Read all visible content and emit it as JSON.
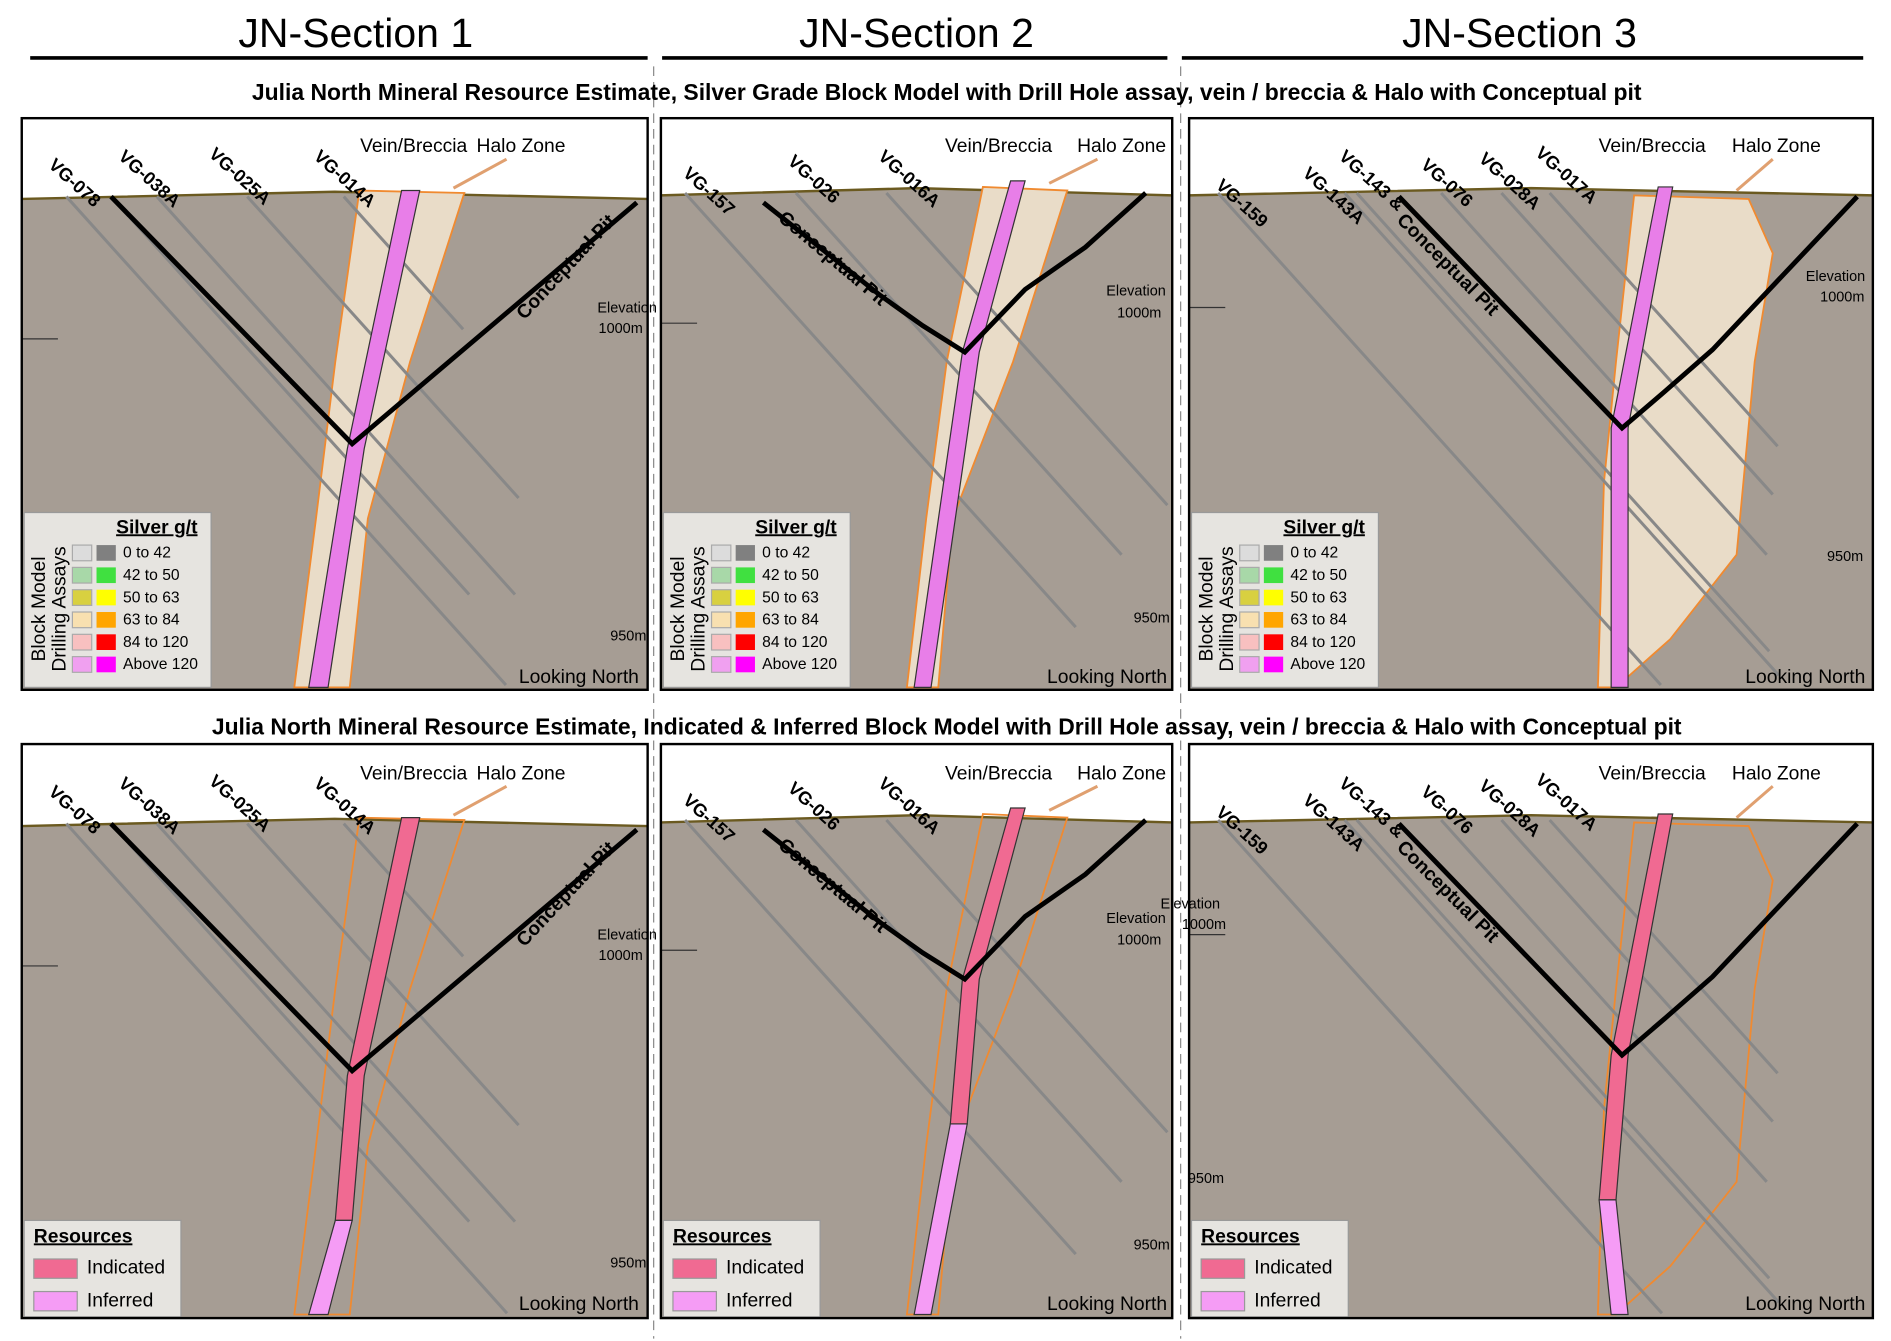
{
  "header": {
    "sections": [
      "JN-Section 1",
      "JN-Section 2",
      "JN-Section 3"
    ]
  },
  "rows": [
    {
      "title": "Julia North Mineral Resource Estimate, Silver Grade Block Model with Drill Hole assay, vein / breccia & Halo with Conceptual pit",
      "panels": [
        {
          "drill_holes": [
            "VG-078",
            "VG-038A",
            "VG-025A",
            "VG-014A"
          ],
          "vein": "Vein/Breccia",
          "halo": "Halo Zone",
          "pit": "Conceptual Pit",
          "elevation": "Elevation",
          "elevation_1000": "1000m",
          "elevation_950": "950m",
          "view": "Looking North",
          "legend": {
            "title": "Silver g/t",
            "groups": [
              "Block Model",
              "Drilling Assays"
            ],
            "items": [
              "0   to 42",
              "42 to 50",
              "50 to 63",
              "63 to 84",
              "84 to 120",
              "Above 120"
            ]
          }
        },
        {
          "drill_holes": [
            "VG-157",
            "VG-026",
            "VG-016A"
          ],
          "vein": "Vein/Breccia",
          "halo": "Halo Zone",
          "pit": "Conceptual Pit",
          "elevation": "Elevation",
          "elevation_1000": "1000m",
          "elevation_950": "950m",
          "view": "Looking North",
          "legend": {
            "title": "Silver g/t",
            "groups": [
              "Block Model",
              "Drilling Assays"
            ],
            "items": [
              "0   to 42",
              "42 to 50",
              "50 to 63",
              "63 to 84",
              "84 to 120",
              "Above 120"
            ]
          }
        },
        {
          "drill_holes": [
            "VG-159",
            "VG-143A",
            "VG-143 &",
            "VG-076",
            "VG-028A",
            "VG-017A"
          ],
          "vein": "Vein/Breccia",
          "halo": "Halo Zone",
          "pit": "Conceptual Pit",
          "elevation": "Elevation",
          "elevation_1000": "1000m",
          "elevation_950": "950m",
          "view": "Looking North",
          "legend": {
            "title": "Silver g/t",
            "groups": [
              "Block Model",
              "Drilling Assays"
            ],
            "items": [
              "0   to 42",
              "42 to 50",
              "50 to 63",
              "63 to 84",
              "84 to 120",
              "Above 120"
            ]
          }
        }
      ]
    },
    {
      "title": "Julia North Mineral Resource Estimate, Indicated & Inferred Block Model with Drill Hole assay, vein / breccia & Halo with Conceptual pit",
      "panels": [
        {
          "drill_holes": [
            "VG-078",
            "VG-038A",
            "VG-025A",
            "VG-014A"
          ],
          "vein": "Vein/Breccia",
          "halo": "Halo Zone",
          "pit": "Conceptual Pit",
          "elevation": "Elevation",
          "elevation_1000": "1000m",
          "elevation_950": "950m",
          "view": "Looking North",
          "legend": {
            "title": "Resources",
            "items": [
              "Indicated",
              "Inferred"
            ]
          }
        },
        {
          "drill_holes": [
            "VG-157",
            "VG-026",
            "VG-016A"
          ],
          "vein": "Vein/Breccia",
          "halo": "Halo Zone",
          "pit": "Conceptual Pit",
          "elevation": "Elevation",
          "elevation_1000": "1000m",
          "elevation_950": "950m",
          "view": "Looking North",
          "legend": {
            "title": "Resources",
            "items": [
              "Indicated",
              "Inferred"
            ]
          }
        },
        {
          "drill_holes": [
            "VG-159",
            "VG-143A",
            "VG-143 &",
            "VG-076",
            "VG-028A",
            "VG-017A"
          ],
          "vein": "Vein/Breccia",
          "halo": "Halo Zone",
          "pit": "Conceptual Pit",
          "elevation": "Elevation",
          "elevation_1000": "1000m",
          "elevation_950": "950m",
          "view": "Looking North",
          "legend": {
            "title": "Resources",
            "items": [
              "Indicated",
              "Inferred"
            ]
          }
        }
      ]
    }
  ]
}
